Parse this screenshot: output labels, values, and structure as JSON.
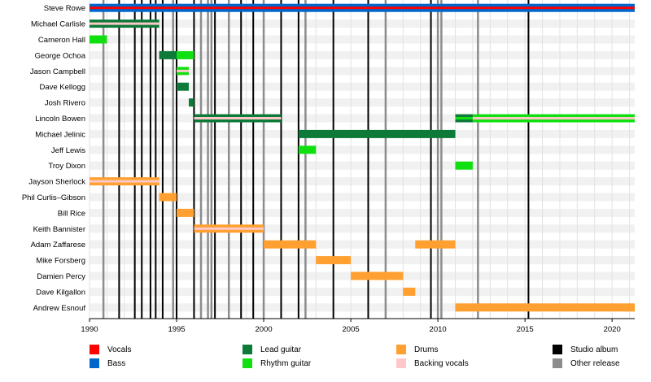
{
  "chart_data": {
    "type": "timeline",
    "x_axis": {
      "min": 1990,
      "max": 2021.3,
      "ticks": [
        1990,
        1995,
        2000,
        2005,
        2010,
        2015,
        2020
      ]
    },
    "colors": {
      "Vocals": "#ff0000",
      "Bass": "#0066cc",
      "Lead guitar": "#0d7a3a",
      "Rhythm guitar": "#10e010",
      "Drums": "#ffa030",
      "Backing vocals": "#ffc8c8",
      "Studio album": "#000000",
      "Other release": "#8c8c8c"
    },
    "members": [
      {
        "name": "Steve Rowe",
        "bars": [
          {
            "start": 1990,
            "end": 2021.3,
            "role": "Bass",
            "overlay": "Vocals"
          }
        ]
      },
      {
        "name": "Michael Carlisle",
        "bars": [
          {
            "start": 1990,
            "end": 1994,
            "role": "Lead guitar",
            "overlay": "Backing vocals"
          }
        ]
      },
      {
        "name": "Cameron Hall",
        "bars": [
          {
            "start": 1990,
            "end": 1991,
            "role": "Rhythm guitar"
          }
        ]
      },
      {
        "name": "George Ochoa",
        "bars": [
          {
            "start": 1994,
            "end": 1995,
            "role": "Lead guitar"
          },
          {
            "start": 1995,
            "end": 1996,
            "role": "Rhythm guitar"
          }
        ]
      },
      {
        "name": "Jason Campbell",
        "bars": [
          {
            "start": 1995,
            "end": 1995.7,
            "role": "Rhythm guitar",
            "overlay": "Backing vocals"
          }
        ]
      },
      {
        "name": "Dave Kellogg",
        "bars": [
          {
            "start": 1995,
            "end": 1995.7,
            "role": "Lead guitar"
          }
        ]
      },
      {
        "name": "Josh Rivero",
        "bars": [
          {
            "start": 1995.7,
            "end": 1996,
            "role": "Lead guitar"
          }
        ]
      },
      {
        "name": "Lincoln Bowen",
        "bars": [
          {
            "start": 1996,
            "end": 2001,
            "role": "Lead guitar",
            "overlay": "Backing vocals"
          },
          {
            "start": 2011,
            "end": 2012,
            "role": "Lead guitar",
            "overlay": "Rhythm guitar"
          },
          {
            "start": 2012,
            "end": 2021.3,
            "role": "Rhythm guitar",
            "overlay": "Backing vocals"
          }
        ]
      },
      {
        "name": "Michael Jelinic",
        "bars": [
          {
            "start": 2002,
            "end": 2011,
            "role": "Lead guitar"
          }
        ]
      },
      {
        "name": "Jeff Lewis",
        "bars": [
          {
            "start": 2002,
            "end": 2003,
            "role": "Rhythm guitar"
          }
        ]
      },
      {
        "name": "Troy Dixon",
        "bars": [
          {
            "start": 2011,
            "end": 2012,
            "role": "Rhythm guitar"
          }
        ]
      },
      {
        "name": "Jayson Sherlock",
        "bars": [
          {
            "start": 1990,
            "end": 1994,
            "role": "Drums",
            "overlay": "Backing vocals"
          }
        ]
      },
      {
        "name": "Phil Curlis–Gibson",
        "bars": [
          {
            "start": 1994,
            "end": 1995,
            "role": "Drums"
          }
        ]
      },
      {
        "name": "Bill Rice",
        "bars": [
          {
            "start": 1995,
            "end": 1996,
            "role": "Drums"
          }
        ]
      },
      {
        "name": "Keith Bannister",
        "bars": [
          {
            "start": 1996,
            "end": 2000,
            "role": "Drums",
            "overlay": "Backing vocals"
          }
        ]
      },
      {
        "name": "Adam Zaffarese",
        "bars": [
          {
            "start": 2000,
            "end": 2003,
            "role": "Drums"
          },
          {
            "start": 2008.7,
            "end": 2011,
            "role": "Drums"
          }
        ]
      },
      {
        "name": "Mike Forsberg",
        "bars": [
          {
            "start": 2003,
            "end": 2005,
            "role": "Drums"
          }
        ]
      },
      {
        "name": "Damien Percy",
        "bars": [
          {
            "start": 2005,
            "end": 2008,
            "role": "Drums"
          }
        ]
      },
      {
        "name": "Dave Kilgallon",
        "bars": [
          {
            "start": 2008,
            "end": 2008.7,
            "role": "Drums"
          }
        ]
      },
      {
        "name": "Andrew Esnouf",
        "bars": [
          {
            "start": 2011,
            "end": 2021.3,
            "role": "Drums"
          }
        ]
      }
    ],
    "studio_albums": [
      1991.7,
      1992.6,
      1993.0,
      1993.5,
      1993.8,
      1994.2,
      1995.0,
      1996.0,
      1997.2,
      1998.7,
      1999.4,
      2001.0,
      2002.0,
      2004.0,
      2006.0,
      2009.6,
      2015.2
    ],
    "other_releases": [
      1990.8,
      1994.8,
      1996.4,
      1996.8,
      1997.0,
      1998.0,
      2000.0,
      2002.4,
      2007.0,
      2010.0,
      2010.2,
      2012.3
    ],
    "legend": [
      {
        "label": "Vocals",
        "role": "Vocals"
      },
      {
        "label": "Bass",
        "role": "Bass"
      },
      {
        "label": "Lead guitar",
        "role": "Lead guitar"
      },
      {
        "label": "Rhythm guitar",
        "role": "Rhythm guitar"
      },
      {
        "label": "Drums",
        "role": "Drums"
      },
      {
        "label": "Backing vocals",
        "role": "Backing vocals"
      },
      {
        "label": "Studio album",
        "role": "Studio album"
      },
      {
        "label": "Other release",
        "role": "Other release"
      }
    ]
  }
}
